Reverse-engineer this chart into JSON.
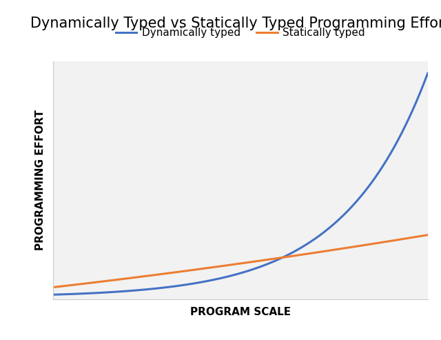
{
  "title": "Dynamically Typed vs Statically Typed Programming Effort",
  "xlabel": "PROGRAM SCALE",
  "ylabel": "PROGRAMMING EFFORT",
  "dynamic_label": "Dynamically typed",
  "static_label": "Statically typed",
  "dynamic_color": "#4472C4",
  "static_color": "#ED7D31",
  "figure_bg": "#FFFFFF",
  "plot_bg": "#F2F2F2",
  "grid_color": "#FFFFFF",
  "line_width": 2.2,
  "title_fontsize": 15,
  "axis_label_fontsize": 11,
  "legend_fontsize": 11
}
